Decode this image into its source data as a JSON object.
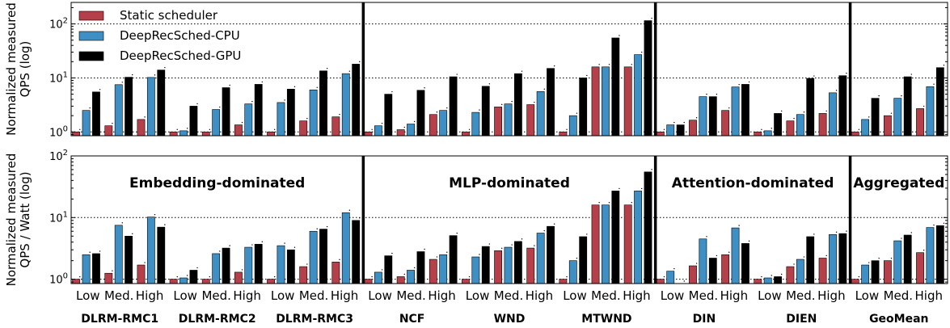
{
  "chart_data": {
    "type": "bar",
    "levels": [
      "Low",
      "Med.",
      "High"
    ],
    "models": [
      "DLRM-RMC1",
      "DLRM-RMC2",
      "DLRM-RMC3",
      "NCF",
      "WND",
      "MTWND",
      "DIN",
      "DIEN",
      "GeoMean"
    ],
    "category_groups": [
      "Embedding-dominated",
      "MLP-dominated",
      "Attention-dominated",
      "Aggregated"
    ],
    "legend": [
      {
        "name": "Static scheduler",
        "color": "#b5404a"
      },
      {
        "name": "DeepRecSched-CPU",
        "color": "#3e8fc4"
      },
      {
        "name": "DeepRecSched-GPU",
        "color": "#000000"
      }
    ],
    "legend_position": "top-left",
    "grid": "horizontal dotted at decades",
    "scale": "log",
    "panels": [
      {
        "ylabel_lines": [
          "Normalized measured",
          "QPS (log)"
        ],
        "yticks": [
          {
            "base": "10",
            "exp": "0",
            "value": 1
          },
          {
            "base": "10",
            "exp": "1",
            "value": 10
          },
          {
            "base": "10",
            "exp": "2",
            "value": 100
          }
        ],
        "ylim": [
          0.85,
          250
        ],
        "values": [
          [
            [
              1.0,
              2.5,
              5.5
            ],
            [
              1.3,
              7.5,
              10.3
            ],
            [
              1.7,
              10.2,
              14.0
            ]
          ],
          [
            [
              1.0,
              1.05,
              3.0
            ],
            [
              1.0,
              2.6,
              6.6
            ],
            [
              1.35,
              3.3,
              7.6
            ]
          ],
          [
            [
              1.0,
              3.5,
              6.2
            ],
            [
              1.6,
              6.0,
              13.5
            ],
            [
              1.9,
              12.0,
              18.0
            ]
          ],
          [
            [
              1.0,
              1.3,
              5.0
            ],
            [
              1.1,
              1.4,
              5.9
            ],
            [
              2.1,
              2.5,
              10.5
            ]
          ],
          [
            [
              1.0,
              2.3,
              7.0
            ],
            [
              2.9,
              3.3,
              12.0
            ],
            [
              3.2,
              5.6,
              15.0
            ]
          ],
          [
            [
              1.0,
              2.0,
              10.0
            ],
            [
              16.0,
              16.0,
              55.0
            ],
            [
              16.0,
              27.0,
              115.0
            ]
          ],
          [
            [
              1.0,
              1.35,
              1.35
            ],
            [
              1.65,
              4.5,
              4.5
            ],
            [
              2.5,
              6.8,
              7.6
            ]
          ],
          [
            [
              1.0,
              1.05,
              2.2
            ],
            [
              1.6,
              2.1,
              9.8
            ],
            [
              2.2,
              5.3,
              11.0
            ]
          ],
          [
            [
              1.0,
              1.7,
              4.2
            ],
            [
              2.0,
              4.2,
              10.5
            ],
            [
              2.7,
              6.9,
              15.5
            ]
          ]
        ]
      },
      {
        "ylabel_lines": [
          "Normalized measured",
          "QPS / Watt (log)"
        ],
        "yticks": [
          {
            "base": "10",
            "exp": "0",
            "value": 1
          },
          {
            "base": "10",
            "exp": "1",
            "value": 10
          },
          {
            "base": "10",
            "exp": "2",
            "value": 100
          }
        ],
        "ylim": [
          0.85,
          100
        ],
        "values": [
          [
            [
              1.0,
              2.5,
              2.6
            ],
            [
              1.25,
              7.5,
              5.0
            ],
            [
              1.7,
              10.2,
              7.0
            ]
          ],
          [
            [
              1.0,
              1.05,
              1.4
            ],
            [
              1.0,
              2.6,
              3.2
            ],
            [
              1.3,
              3.3,
              3.7
            ]
          ],
          [
            [
              1.0,
              3.5,
              3.0
            ],
            [
              1.6,
              6.0,
              6.5
            ],
            [
              1.9,
              12.0,
              9.0
            ]
          ],
          [
            [
              1.0,
              1.3,
              2.4
            ],
            [
              1.1,
              1.4,
              2.8
            ],
            [
              2.1,
              2.5,
              5.1
            ]
          ],
          [
            [
              1.0,
              2.3,
              3.4
            ],
            [
              2.9,
              3.3,
              4.1
            ],
            [
              3.2,
              5.6,
              7.2
            ]
          ],
          [
            [
              1.0,
              2.0,
              4.9
            ],
            [
              16.0,
              16.0,
              27.0
            ],
            [
              16.0,
              27.0,
              55.0
            ]
          ],
          [
            [
              1.0,
              1.35,
              0.85
            ],
            [
              1.65,
              4.5,
              2.2
            ],
            [
              2.5,
              6.8,
              3.8
            ]
          ],
          [
            [
              1.0,
              1.05,
              1.1
            ],
            [
              1.6,
              2.1,
              4.9
            ],
            [
              2.2,
              5.3,
              5.5
            ]
          ],
          [
            [
              1.0,
              1.7,
              2.0
            ],
            [
              2.0,
              4.2,
              5.2
            ],
            [
              2.7,
              6.9,
              7.4
            ]
          ]
        ]
      }
    ]
  }
}
